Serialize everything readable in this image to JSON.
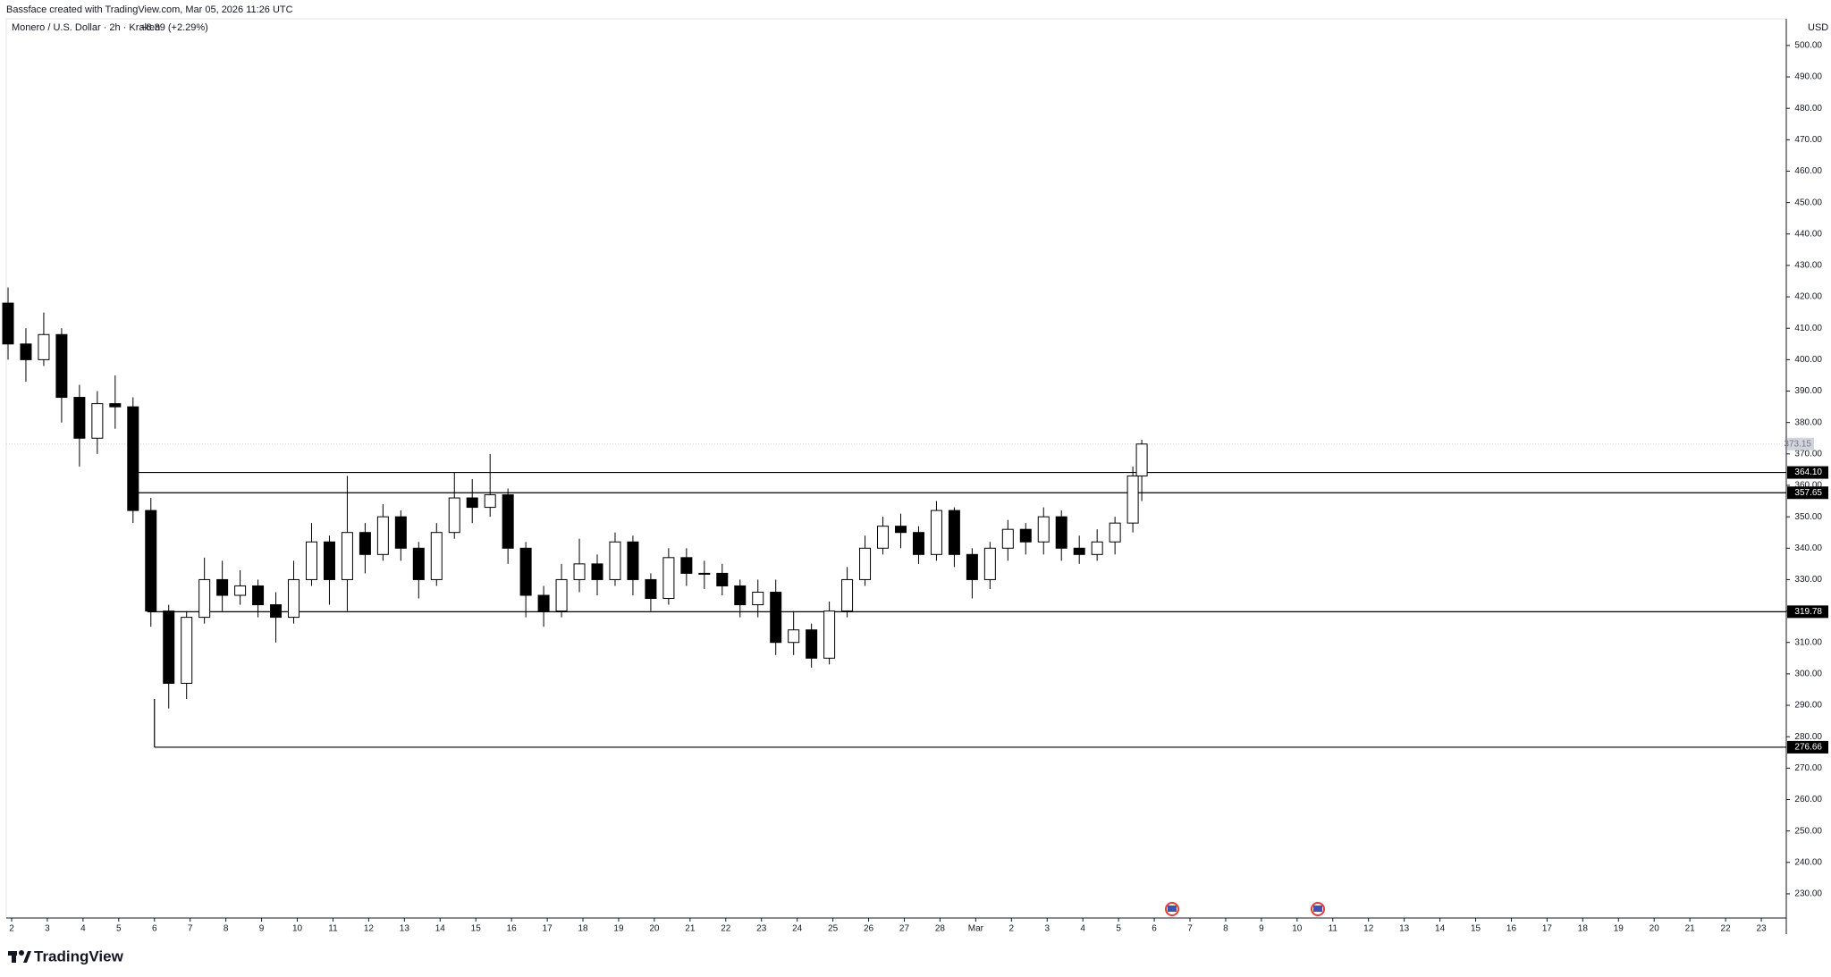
{
  "header": {
    "credit": "Bassface created with TradingView.com, Mar 05, 2026 11:26 UTC"
  },
  "footer": {
    "brand": "TradingView"
  },
  "chart_data": {
    "type": "candlestick",
    "title": "Monero / U.S. Dollar · 2h · Kraken",
    "change": "+8.39 (+2.29%)",
    "currency": "USD",
    "last_price": 373.15,
    "x": [
      1.9,
      2.4,
      2.9,
      3.4,
      3.9,
      4.4,
      4.9,
      5.4,
      5.9,
      6.4,
      6.9,
      7.4,
      7.9,
      8.4,
      8.9,
      9.4,
      9.9,
      10.4,
      10.9,
      11.4,
      11.9,
      12.4,
      12.9,
      13.4,
      13.9,
      14.4,
      14.9,
      15.4,
      15.9,
      16.4,
      16.9,
      17.4,
      17.9,
      18.4,
      18.9,
      19.4,
      19.9,
      20.4,
      20.9,
      21.4,
      21.9,
      22.4,
      22.9,
      23.4,
      23.9,
      24.4,
      24.9,
      25.4,
      25.9,
      26.4,
      26.9,
      27.4,
      27.9,
      28.4,
      28.9,
      29.4,
      29.9,
      30.4,
      30.9,
      31.4,
      31.9,
      32.4,
      32.9,
      33.4,
      33.65
    ],
    "open": [
      418,
      405,
      400,
      408,
      388,
      375,
      386,
      385,
      352,
      320,
      297,
      318,
      330,
      325,
      328,
      322,
      318,
      330,
      342,
      330,
      345,
      338,
      350,
      340,
      330,
      345,
      356,
      353,
      357,
      340,
      325,
      320,
      330,
      335,
      330,
      342,
      330,
      324,
      337,
      332,
      332,
      328,
      322,
      326,
      310,
      314,
      305,
      320,
      330,
      340,
      347,
      345,
      338,
      352,
      338,
      330,
      340,
      346,
      342,
      350,
      340,
      338,
      342,
      348,
      363
    ],
    "high": [
      423,
      410,
      415,
      410,
      392,
      390,
      395,
      388,
      356,
      322,
      320,
      337,
      336,
      333,
      330,
      326,
      336,
      348,
      344,
      363,
      348,
      354,
      352,
      342,
      348,
      364,
      362,
      370,
      359,
      342,
      328,
      335,
      343,
      338,
      345,
      344,
      332,
      340,
      340,
      336,
      335,
      330,
      330,
      330,
      320,
      316,
      323,
      334,
      344,
      350,
      351,
      347,
      355,
      353,
      340,
      342,
      349,
      348,
      353,
      352,
      344,
      346,
      350,
      366,
      374.5
    ],
    "low": [
      400,
      393,
      398,
      380,
      366,
      370,
      378,
      348,
      315,
      289,
      292,
      316,
      320,
      322,
      318,
      310,
      316,
      328,
      322,
      320,
      332,
      336,
      336,
      324,
      328,
      343,
      348,
      350,
      335,
      318,
      315,
      318,
      326,
      325,
      328,
      325,
      320,
      322,
      328,
      327,
      325,
      318,
      318,
      306,
      306,
      302,
      303,
      318,
      328,
      338,
      340,
      335,
      336,
      334,
      324,
      327,
      336,
      338,
      338,
      336,
      335,
      336,
      338,
      345,
      355
    ],
    "close": [
      405,
      400,
      408,
      388,
      375,
      386,
      385,
      352,
      320,
      297,
      318,
      330,
      325,
      328,
      322,
      318,
      330,
      342,
      330,
      345,
      338,
      350,
      340,
      330,
      345,
      356,
      353,
      357,
      340,
      325,
      320,
      330,
      335,
      330,
      342,
      330,
      324,
      337,
      332,
      332,
      328,
      322,
      326,
      310,
      314,
      305,
      320,
      330,
      340,
      347,
      345,
      338,
      352,
      338,
      330,
      340,
      346,
      342,
      350,
      340,
      338,
      342,
      348,
      363,
      373.15
    ],
    "levels": [
      {
        "value": 364.1,
        "label": "364.10",
        "from": 5.4
      },
      {
        "value": 357.65,
        "label": "357.65",
        "from": 5.4
      },
      {
        "value": 319.78,
        "label": "319.78",
        "from": 5.8
      },
      {
        "value": 276.66,
        "label": "276.66",
        "from": 6.0
      }
    ],
    "xlim": [
      1.85,
      51.7
    ],
    "ylim": [
      222.3,
      508.5
    ],
    "xticks": [
      2,
      3,
      4,
      5,
      6,
      7,
      8,
      9,
      10,
      11,
      12,
      13,
      14,
      15,
      16,
      17,
      18,
      19,
      20,
      21,
      22,
      23,
      24,
      25,
      26,
      27,
      28,
      {
        "value": 29,
        "label": "Mar"
      },
      {
        "value": 30,
        "label": "2"
      },
      {
        "value": 31,
        "label": "3"
      },
      {
        "value": 32,
        "label": "4"
      },
      {
        "value": 33,
        "label": "5"
      },
      {
        "value": 34,
        "label": "6"
      },
      {
        "value": 35,
        "label": "7"
      },
      {
        "value": 36,
        "label": "8"
      },
      {
        "value": 37,
        "label": "9"
      },
      {
        "value": 38,
        "label": "10"
      },
      {
        "value": 39,
        "label": "11"
      },
      {
        "value": 40,
        "label": "12"
      },
      {
        "value": 41,
        "label": "13"
      },
      {
        "value": 42,
        "label": "14"
      },
      {
        "value": 43,
        "label": "15"
      },
      {
        "value": 44,
        "label": "16"
      },
      {
        "value": 45,
        "label": "17"
      },
      {
        "value": 46,
        "label": "18"
      },
      {
        "value": 47,
        "label": "19"
      },
      {
        "value": 48,
        "label": "20"
      },
      {
        "value": 49,
        "label": "21"
      },
      {
        "value": 50,
        "label": "22"
      },
      {
        "value": 51,
        "label": "23"
      }
    ],
    "yticks": [
      {
        "value": 230,
        "label": "230.00"
      },
      {
        "value": 240,
        "label": "240.00"
      },
      {
        "value": 250,
        "label": "250.00"
      },
      {
        "value": 260,
        "label": "260.00"
      },
      {
        "value": 270,
        "label": "270.00"
      },
      {
        "value": 280,
        "label": "280.00"
      },
      {
        "value": 290,
        "label": "290.00"
      },
      {
        "value": 300,
        "label": "300.00"
      },
      {
        "value": 310,
        "label": "310.00"
      },
      {
        "value": 320,
        "label": "320.00"
      },
      {
        "value": 330,
        "label": "330.00"
      },
      {
        "value": 340,
        "label": "340.00"
      },
      {
        "value": 350,
        "label": "350.00"
      },
      {
        "value": 360,
        "label": "360.00"
      },
      {
        "value": 370,
        "label": "370.00"
      },
      {
        "value": 380,
        "label": "380.00"
      },
      {
        "value": 390,
        "label": "390.00"
      },
      {
        "value": 400,
        "label": "400.00"
      },
      {
        "value": 410,
        "label": "410.00"
      },
      {
        "value": 420,
        "label": "420.00"
      },
      {
        "value": 430,
        "label": "430.00"
      },
      {
        "value": 440,
        "label": "440.00"
      },
      {
        "value": 450,
        "label": "450.00"
      },
      {
        "value": 460,
        "label": "460.00"
      },
      {
        "value": 470,
        "label": "470.00"
      },
      {
        "value": 480,
        "label": "480.00"
      },
      {
        "value": 490,
        "label": "490.00"
      },
      {
        "value": 500,
        "label": "500.00"
      }
    ],
    "up_color": "#ffffff",
    "down_color": "#000000",
    "level_color": "#000000"
  }
}
